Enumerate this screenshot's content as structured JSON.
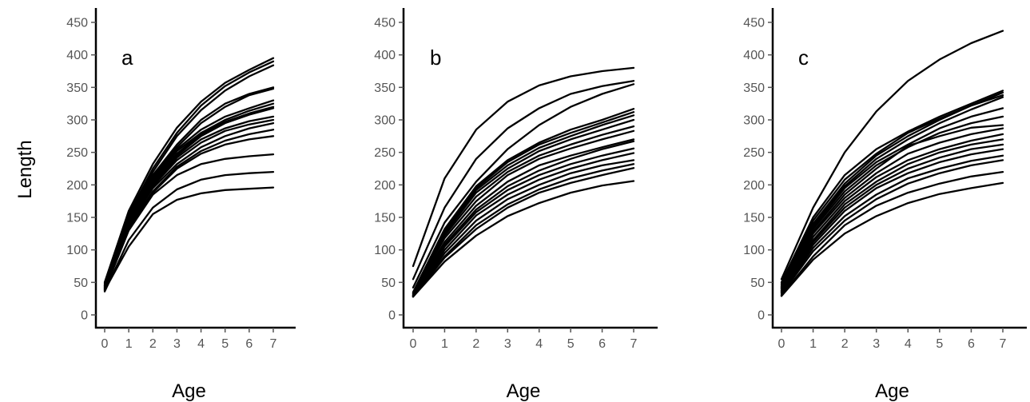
{
  "figure": {
    "ylabel": "Length",
    "xlabel": "Age"
  },
  "chart_data": [
    {
      "type": "line",
      "panel_label": "a",
      "xlabel": "Age",
      "ylabel": "Length",
      "xlim": [
        0,
        7
      ],
      "ylim": [
        0,
        450
      ],
      "xticks": [
        "0",
        "1",
        "2",
        "3",
        "4",
        "5",
        "6",
        "7"
      ],
      "yticks": [
        "0",
        "50",
        "100",
        "150",
        "200",
        "250",
        "300",
        "350",
        "400",
        "450"
      ],
      "grid": false,
      "x": [
        0,
        1,
        2,
        3,
        4,
        5,
        6,
        7
      ],
      "series": [
        {
          "values": [
            50,
            160,
            232,
            288,
            328,
            357,
            377,
            395
          ]
        },
        {
          "values": [
            48,
            155,
            225,
            280,
            322,
            352,
            373,
            390
          ]
        },
        {
          "values": [
            45,
            150,
            220,
            275,
            315,
            345,
            367,
            384
          ]
        },
        {
          "values": [
            48,
            152,
            215,
            262,
            300,
            325,
            340,
            350
          ]
        },
        {
          "values": [
            46,
            150,
            212,
            258,
            295,
            320,
            338,
            348
          ]
        },
        {
          "values": [
            45,
            148,
            210,
            255,
            285,
            305,
            318,
            330
          ]
        },
        {
          "values": [
            44,
            148,
            208,
            252,
            280,
            300,
            314,
            325
          ]
        },
        {
          "values": [
            43,
            145,
            205,
            248,
            278,
            297,
            310,
            320
          ]
        },
        {
          "values": [
            42,
            145,
            202,
            245,
            275,
            295,
            308,
            318
          ]
        },
        {
          "values": [
            42,
            142,
            200,
            242,
            270,
            287,
            298,
            305
          ]
        },
        {
          "values": [
            41,
            140,
            198,
            238,
            265,
            283,
            293,
            300
          ]
        },
        {
          "values": [
            40,
            138,
            195,
            232,
            258,
            275,
            287,
            295
          ]
        },
        {
          "values": [
            40,
            135,
            190,
            228,
            252,
            268,
            278,
            285
          ]
        },
        {
          "values": [
            39,
            133,
            188,
            225,
            248,
            262,
            270,
            275
          ]
        },
        {
          "values": [
            38,
            130,
            185,
            215,
            232,
            240,
            244,
            247
          ]
        },
        {
          "values": [
            36,
            115,
            165,
            193,
            208,
            215,
            218,
            220
          ]
        },
        {
          "values": [
            38,
            105,
            155,
            177,
            187,
            192,
            194,
            196
          ]
        }
      ]
    },
    {
      "type": "line",
      "panel_label": "b",
      "xlabel": "Age",
      "ylabel": "",
      "xlim": [
        0,
        7
      ],
      "ylim": [
        0,
        450
      ],
      "xticks": [
        "0",
        "1",
        "2",
        "3",
        "4",
        "5",
        "6",
        "7"
      ],
      "yticks": [
        "0",
        "50",
        "100",
        "150",
        "200",
        "250",
        "300",
        "350",
        "400",
        "450"
      ],
      "grid": false,
      "x": [
        0,
        1,
        2,
        3,
        4,
        5,
        6,
        7
      ],
      "series": [
        {
          "values": [
            75,
            210,
            285,
            328,
            353,
            367,
            375,
            380
          ]
        },
        {
          "values": [
            55,
            165,
            240,
            287,
            318,
            340,
            352,
            360
          ]
        },
        {
          "values": [
            42,
            142,
            205,
            255,
            292,
            320,
            340,
            355
          ]
        },
        {
          "values": [
            35,
            132,
            198,
            238,
            265,
            285,
            300,
            317
          ]
        },
        {
          "values": [
            34,
            130,
            195,
            235,
            262,
            280,
            296,
            312
          ]
        },
        {
          "values": [
            33,
            128,
            192,
            230,
            257,
            275,
            292,
            307
          ]
        },
        {
          "values": [
            33,
            125,
            188,
            225,
            252,
            270,
            285,
            300
          ]
        },
        {
          "values": [
            32,
            122,
            182,
            220,
            245,
            262,
            277,
            290
          ]
        },
        {
          "values": [
            31,
            118,
            175,
            215,
            240,
            256,
            270,
            283
          ]
        },
        {
          "values": [
            30,
            112,
            168,
            205,
            230,
            245,
            258,
            270
          ]
        },
        {
          "values": [
            30,
            108,
            162,
            198,
            222,
            240,
            255,
            267
          ]
        },
        {
          "values": [
            30,
            105,
            158,
            192,
            215,
            232,
            245,
            256
          ]
        },
        {
          "values": [
            29,
            100,
            153,
            185,
            208,
            225,
            238,
            249
          ]
        },
        {
          "values": [
            28,
            95,
            145,
            178,
            200,
            218,
            230,
            238
          ]
        },
        {
          "values": [
            28,
            90,
            138,
            170,
            193,
            210,
            222,
            232
          ]
        },
        {
          "values": [
            28,
            88,
            132,
            165,
            188,
            203,
            215,
            226
          ]
        },
        {
          "values": [
            28,
            82,
            122,
            152,
            172,
            188,
            199,
            206
          ]
        }
      ]
    },
    {
      "type": "line",
      "panel_label": "c",
      "xlabel": "Age",
      "ylabel": "",
      "xlim": [
        0,
        7
      ],
      "ylim": [
        0,
        450
      ],
      "xticks": [
        "0",
        "1",
        "2",
        "3",
        "4",
        "5",
        "6",
        "7"
      ],
      "yticks": [
        "0",
        "50",
        "100",
        "150",
        "200",
        "250",
        "300",
        "350",
        "400",
        "450"
      ],
      "grid": false,
      "x": [
        0,
        1,
        2,
        3,
        4,
        5,
        6,
        7
      ],
      "series": [
        {
          "values": [
            55,
            165,
            250,
            313,
            360,
            393,
            418,
            437
          ]
        },
        {
          "values": [
            50,
            150,
            215,
            255,
            282,
            305,
            325,
            345
          ]
        },
        {
          "values": [
            48,
            145,
            208,
            248,
            280,
            302,
            322,
            342
          ]
        },
        {
          "values": [
            46,
            140,
            202,
            245,
            275,
            300,
            322,
            338
          ]
        },
        {
          "values": [
            44,
            138,
            198,
            240,
            270,
            295,
            316,
            335
          ]
        },
        {
          "values": [
            43,
            135,
            195,
            235,
            262,
            287,
            305,
            318
          ]
        },
        {
          "values": [
            42,
            132,
            190,
            230,
            258,
            280,
            295,
            305
          ]
        },
        {
          "values": [
            41,
            128,
            185,
            225,
            260,
            275,
            288,
            292
          ]
        },
        {
          "values": [
            40,
            125,
            180,
            218,
            248,
            265,
            278,
            287
          ]
        },
        {
          "values": [
            38,
            120,
            175,
            212,
            238,
            255,
            268,
            278
          ]
        },
        {
          "values": [
            37,
            115,
            170,
            205,
            232,
            250,
            262,
            270
          ]
        },
        {
          "values": [
            36,
            112,
            165,
            200,
            225,
            242,
            255,
            262
          ]
        },
        {
          "values": [
            35,
            108,
            160,
            195,
            218,
            235,
            247,
            255
          ]
        },
        {
          "values": [
            34,
            103,
            152,
            185,
            210,
            225,
            237,
            245
          ]
        },
        {
          "values": [
            32,
            98,
            145,
            178,
            202,
            218,
            230,
            238
          ]
        },
        {
          "values": [
            30,
            90,
            138,
            168,
            188,
            202,
            213,
            220
          ]
        },
        {
          "values": [
            29,
            85,
            125,
            152,
            172,
            186,
            195,
            203
          ]
        }
      ]
    }
  ]
}
